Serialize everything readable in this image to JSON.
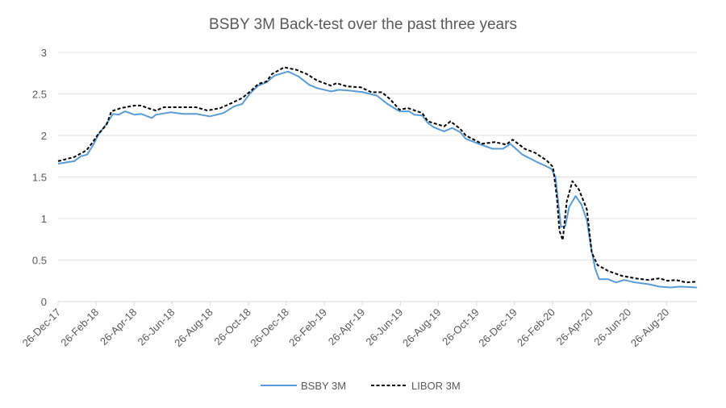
{
  "chart_data": {
    "type": "line",
    "title": "BSBY 3M Back-test over the past three years",
    "xlabel": "",
    "ylabel": "",
    "x_unit": "months since 26-Dec-17",
    "xlim": [
      0,
      33.6
    ],
    "ylim": [
      0,
      3
    ],
    "yticks": [
      0,
      0.5,
      1,
      1.5,
      2,
      2.5,
      3
    ],
    "ytick_labels": [
      "0",
      "0.5",
      "1",
      "1.5",
      "2",
      "2.5",
      "3"
    ],
    "xticks": [
      0,
      2,
      4,
      6,
      8,
      10,
      12,
      14,
      16,
      18,
      20,
      22,
      24,
      26,
      28,
      30,
      32
    ],
    "xtick_labels": [
      "26-Dec-17",
      "26-Feb-18",
      "26-Apr-18",
      "26-Jun-18",
      "26-Aug-18",
      "26-Oct-18",
      "26-Dec-18",
      "26-Feb-19",
      "26-Apr-19",
      "26-Jun-19",
      "26-Aug-19",
      "26-Oct-19",
      "26-Dec-19",
      "26-Feb-20",
      "26-Apr-20",
      "26-Jun-20",
      "26-Aug-20"
    ],
    "grid": "horizontal",
    "legend_position": "bottom",
    "series": [
      {
        "name": "BSBY 3M",
        "color": "#5B9BD5",
        "style": "solid",
        "x": [
          0,
          0.85,
          1.19,
          1.53,
          1.83,
          2.12,
          2.55,
          2.89,
          3.18,
          3.52,
          4.03,
          4.37,
          4.93,
          5.14,
          5.94,
          6.58,
          7.26,
          7.98,
          8.7,
          9.26,
          9.68,
          10.11,
          10.53,
          10.96,
          11.38,
          12.1,
          12.65,
          13.21,
          13.63,
          14.35,
          14.78,
          15.33,
          16.05,
          16.77,
          17.32,
          17.96,
          18.47,
          18.73,
          19.15,
          19.45,
          19.75,
          20.3,
          20.72,
          21.15,
          21.44,
          22.12,
          22.85,
          23.4,
          23.78,
          24.42,
          25.1,
          25.94,
          26.16,
          26.33,
          26.45,
          26.67,
          26.88,
          27.22,
          27.52,
          27.81,
          28.03,
          28.24,
          28.45,
          28.92,
          29.34,
          29.77,
          30.36,
          31.04,
          31.63,
          32.19,
          32.74,
          33.59
        ],
        "values": [
          1.66,
          1.69,
          1.75,
          1.77,
          1.88,
          2.01,
          2.14,
          2.26,
          2.25,
          2.29,
          2.25,
          2.26,
          2.21,
          2.25,
          2.28,
          2.26,
          2.26,
          2.23,
          2.27,
          2.35,
          2.38,
          2.51,
          2.6,
          2.64,
          2.72,
          2.77,
          2.71,
          2.61,
          2.57,
          2.53,
          2.55,
          2.54,
          2.52,
          2.48,
          2.38,
          2.29,
          2.29,
          2.25,
          2.24,
          2.15,
          2.1,
          2.05,
          2.09,
          2.04,
          1.96,
          1.9,
          1.84,
          1.84,
          1.9,
          1.77,
          1.69,
          1.6,
          1.5,
          1.14,
          0.9,
          0.91,
          1.14,
          1.27,
          1.17,
          0.98,
          0.65,
          0.4,
          0.27,
          0.27,
          0.23,
          0.26,
          0.23,
          0.21,
          0.18,
          0.17,
          0.18,
          0.17
        ]
      },
      {
        "name": "LIBOR 3M",
        "color": "#000000",
        "style": "dashed",
        "x": [
          0,
          0.85,
          1.49,
          1.83,
          2.12,
          2.55,
          2.8,
          3.31,
          4.03,
          4.37,
          4.71,
          5.14,
          5.56,
          6.58,
          7.26,
          7.86,
          8.54,
          9.13,
          9.68,
          10.11,
          10.53,
          10.96,
          11.25,
          11.89,
          12.53,
          13.08,
          13.63,
          14.35,
          14.65,
          15.2,
          15.92,
          16.48,
          17.03,
          17.45,
          17.96,
          18.39,
          19.15,
          19.45,
          20.3,
          20.64,
          21.15,
          21.44,
          22.29,
          22.97,
          23.57,
          23.91,
          24.54,
          25.1,
          25.69,
          26.03,
          26.24,
          26.37,
          26.54,
          26.75,
          27.05,
          27.39,
          27.81,
          28.07,
          28.37,
          28.92,
          29.64,
          30.36,
          31.04,
          31.63,
          32.06,
          32.48,
          33.04,
          33.59
        ],
        "values": [
          1.69,
          1.74,
          1.82,
          1.92,
          2.02,
          2.13,
          2.29,
          2.33,
          2.36,
          2.36,
          2.33,
          2.3,
          2.34,
          2.34,
          2.34,
          2.3,
          2.33,
          2.39,
          2.45,
          2.53,
          2.62,
          2.65,
          2.74,
          2.82,
          2.79,
          2.74,
          2.66,
          2.6,
          2.63,
          2.59,
          2.58,
          2.52,
          2.52,
          2.44,
          2.31,
          2.33,
          2.27,
          2.17,
          2.11,
          2.17,
          2.08,
          2.0,
          1.9,
          1.92,
          1.89,
          1.95,
          1.84,
          1.79,
          1.7,
          1.62,
          1.24,
          0.85,
          0.74,
          1.2,
          1.45,
          1.35,
          1.11,
          0.59,
          0.44,
          0.37,
          0.31,
          0.28,
          0.26,
          0.28,
          0.25,
          0.26,
          0.23,
          0.24
        ]
      }
    ]
  }
}
